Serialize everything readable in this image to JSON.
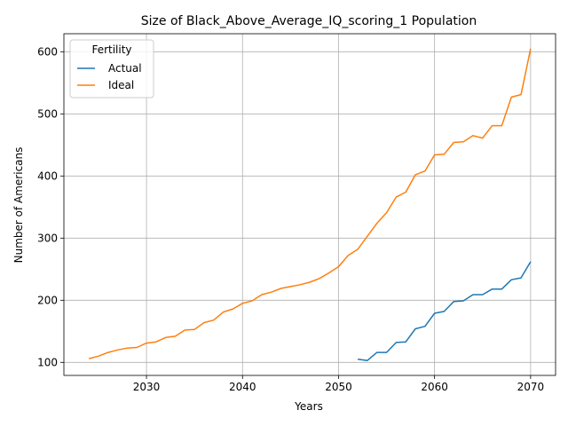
{
  "chart_data": {
    "type": "line",
    "title": "Size of Black_Above_Average_IQ_scoring_1 Population",
    "xlabel": "Years",
    "ylabel": "Number of Americans",
    "xlim": [
      2021.4,
      2072.6
    ],
    "ylim": [
      79,
      629
    ],
    "xticks": [
      2030,
      2040,
      2050,
      2060,
      2070
    ],
    "yticks": [
      100,
      200,
      300,
      400,
      500,
      600
    ],
    "grid": true,
    "legend": {
      "title": "Fertility",
      "placement": "top-left"
    },
    "series": [
      {
        "name": "Actual",
        "color": "#1f77b4",
        "x": [
          2052,
          2053,
          2054,
          2055,
          2056,
          2057,
          2058,
          2059,
          2060,
          2061,
          2062,
          2063,
          2064,
          2065,
          2066,
          2067,
          2068,
          2069,
          2070
        ],
        "values": [
          105,
          103,
          116,
          116,
          132,
          133,
          154,
          158,
          179,
          182,
          198,
          199,
          209,
          209,
          218,
          218,
          233,
          236,
          262
        ]
      },
      {
        "name": "Ideal",
        "color": "#ff7f0e",
        "x": [
          2024,
          2025,
          2026,
          2027,
          2028,
          2029,
          2030,
          2031,
          2032,
          2033,
          2034,
          2035,
          2036,
          2037,
          2038,
          2039,
          2040,
          2041,
          2042,
          2043,
          2044,
          2045,
          2046,
          2047,
          2048,
          2049,
          2050,
          2051,
          2052,
          2053,
          2054,
          2055,
          2056,
          2057,
          2058,
          2059,
          2060,
          2061,
          2062,
          2063,
          2064,
          2065,
          2066,
          2067,
          2068,
          2069,
          2070
        ],
        "values": [
          106,
          110,
          116,
          120,
          123,
          124,
          131,
          133,
          140,
          142,
          152,
          153,
          164,
          168,
          181,
          186,
          195,
          199,
          209,
          213,
          219,
          222,
          225,
          229,
          235,
          244,
          254,
          272,
          282,
          303,
          324,
          341,
          366,
          374,
          402,
          408,
          434,
          435,
          454,
          455,
          465,
          461,
          481,
          481,
          527,
          531,
          605
        ]
      }
    ]
  }
}
